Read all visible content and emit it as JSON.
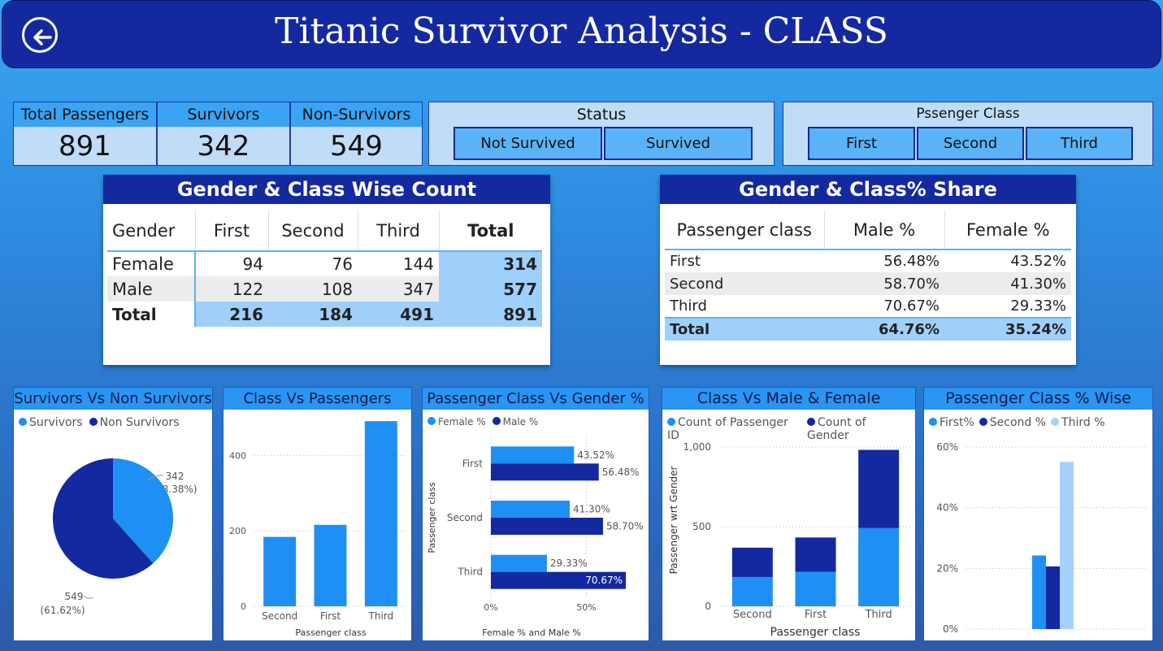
{
  "header": {
    "title": "Titanic Survivor Analysis - CLASS"
  },
  "kpis": [
    {
      "label": "Total Passengers",
      "value": "891"
    },
    {
      "label": "Survivors",
      "value": "342"
    },
    {
      "label": "Non-Survivors",
      "value": "549"
    }
  ],
  "status_slicer": {
    "title": "Status",
    "options": [
      "Not Survived",
      "Survived"
    ]
  },
  "class_slicer": {
    "title": "Pssenger Class",
    "options": [
      "First",
      "Second",
      "Third"
    ]
  },
  "table1": {
    "title": "Gender & Class Wise Count",
    "headers": [
      "Gender",
      "First",
      "Second",
      "Third",
      "Total"
    ],
    "rows": [
      [
        "Female",
        "94",
        "76",
        "144",
        "314"
      ],
      [
        "Male",
        "122",
        "108",
        "347",
        "577"
      ],
      [
        "Total",
        "216",
        "184",
        "491",
        "891"
      ]
    ]
  },
  "table2": {
    "title": "Gender & Class% Share",
    "headers": [
      "Passenger class",
      "Male %",
      "Female %"
    ],
    "rows": [
      [
        "First",
        "56.48%",
        "43.52%"
      ],
      [
        "Second",
        "58.70%",
        "41.30%"
      ],
      [
        "Third",
        "70.67%",
        "29.33%"
      ],
      [
        "Total",
        "64.76%",
        "35.24%"
      ]
    ]
  },
  "colors": {
    "light": "#1e8ff5",
    "dark": "#1428a0",
    "pale": "#a6d1fc"
  },
  "chart_data": [
    {
      "type": "pie",
      "title": "Survivors Vs Non Survivors",
      "categories": [
        "Survivors",
        "Non Survivors"
      ],
      "values": [
        342,
        549
      ],
      "labels": [
        "342",
        "(38.38%)",
        "549",
        "(61.62%)"
      ]
    },
    {
      "type": "bar",
      "title": "Class Vs Passengers",
      "categories": [
        "Second",
        "First",
        "Third"
      ],
      "values": [
        184,
        216,
        491
      ],
      "xlabel": "Passenger class",
      "yticks": [
        "0",
        "200",
        "400"
      ],
      "ylim": [
        0,
        500
      ]
    },
    {
      "type": "bar",
      "title": "Passenger Class Vs Gender %",
      "categories": [
        "First",
        "Second",
        "Third"
      ],
      "series": [
        {
          "name": "Female %",
          "values": [
            43.52,
            41.3,
            29.33
          ],
          "labels": [
            "43.52%",
            "41.30%",
            "29.33%"
          ]
        },
        {
          "name": "Male %",
          "values": [
            56.48,
            58.7,
            70.67
          ],
          "labels": [
            "56.48%",
            "58.70%",
            "70.67%"
          ]
        }
      ],
      "xlabel": "Female % and Male %",
      "ylabel": "Passenger class",
      "xticks": [
        "0%",
        "50%"
      ],
      "xlim": [
        0,
        80
      ]
    },
    {
      "type": "bar",
      "title": "Class Vs Male & Female",
      "categories": [
        "Second",
        "First",
        "Third"
      ],
      "series": [
        {
          "name": "Count of Passenger ID",
          "values": [
            184,
            216,
            491
          ]
        },
        {
          "name": "Count of Gender",
          "values": [
            184,
            216,
            491
          ]
        }
      ],
      "xlabel": "Passenger class",
      "ylabel": "Passenger wrt Gender",
      "yticks": [
        "0",
        "500",
        "1,000"
      ],
      "ylim": [
        0,
        1000
      ]
    },
    {
      "type": "bar",
      "title": "Passenger Class % Wise",
      "series": [
        {
          "name": "First%",
          "values": [
            24.24
          ]
        },
        {
          "name": "Second %",
          "values": [
            20.65
          ]
        },
        {
          "name": "Third %",
          "values": [
            55.11
          ]
        }
      ],
      "yticks": [
        "0%",
        "20%",
        "40%",
        "60%"
      ],
      "ylim": [
        0,
        60
      ]
    }
  ]
}
